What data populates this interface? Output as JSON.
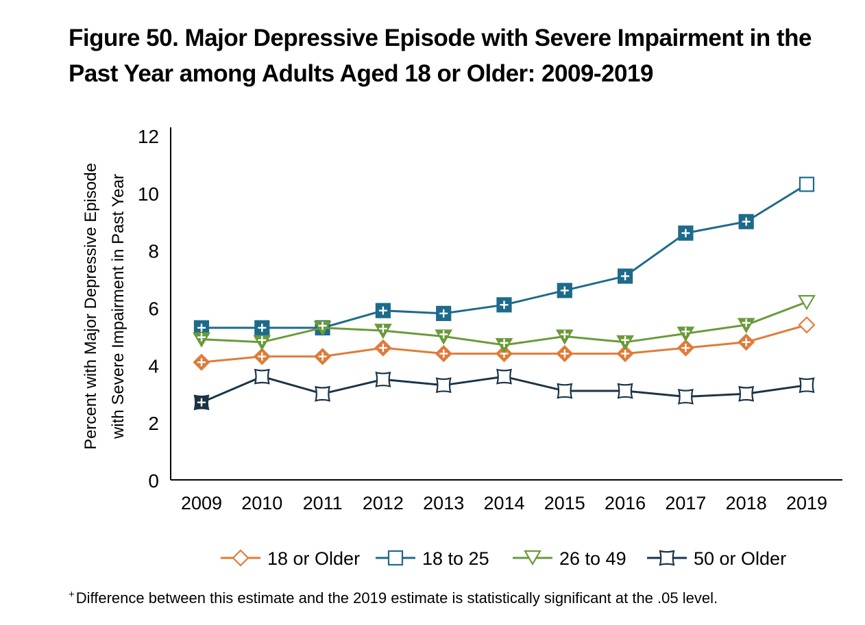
{
  "title": "Figure 50. Major Depressive Episode with Severe Impairment in the Past Year among Adults Aged 18 or Older: 2009-2019",
  "footnote": {
    "symbol": "+",
    "text": "Difference between this estimate and the 2019 estimate is statistically significant at the .05 level."
  },
  "chart_data": {
    "type": "line",
    "title": "Figure 50. Major Depressive Episode with Severe Impairment in the Past Year among Adults Aged 18 or Older: 2009-2019",
    "xlabel": "",
    "ylabel_lines": [
      "Percent with Major Depressive Episode",
      "with Severe Impairment in Past Year"
    ],
    "categories": [
      "2009",
      "2010",
      "2011",
      "2012",
      "2013",
      "2014",
      "2015",
      "2016",
      "2017",
      "2018",
      "2019"
    ],
    "ylim": [
      0,
      12
    ],
    "yticks": [
      0,
      2,
      4,
      6,
      8,
      10,
      12
    ],
    "grid": false,
    "legend_position": "bottom",
    "series": [
      {
        "name": "18 or Older",
        "marker": "diamond",
        "color": "#e07b39",
        "values": [
          4.1,
          4.3,
          4.3,
          4.6,
          4.4,
          4.4,
          4.4,
          4.4,
          4.6,
          4.8,
          5.4
        ],
        "significant": [
          true,
          true,
          true,
          true,
          true,
          true,
          true,
          true,
          true,
          true,
          false
        ]
      },
      {
        "name": "18 to 25",
        "marker": "square",
        "color": "#1e6a8a",
        "values": [
          5.3,
          5.3,
          5.3,
          5.9,
          5.8,
          6.1,
          6.6,
          7.1,
          8.6,
          9.0,
          10.3
        ],
        "significant": [
          true,
          true,
          true,
          true,
          true,
          true,
          true,
          true,
          true,
          true,
          false
        ]
      },
      {
        "name": "26 to 49",
        "marker": "triangle-down",
        "color": "#6a9a3a",
        "values": [
          4.9,
          4.8,
          5.3,
          5.2,
          5.0,
          4.7,
          5.0,
          4.8,
          5.1,
          5.4,
          6.2
        ],
        "significant": [
          true,
          true,
          true,
          true,
          true,
          true,
          true,
          true,
          true,
          true,
          false
        ]
      },
      {
        "name": "50 or Older",
        "marker": "pinched-square",
        "color": "#1a3447",
        "values": [
          2.7,
          3.6,
          3.0,
          3.5,
          3.3,
          3.6,
          3.1,
          3.1,
          2.9,
          3.0,
          3.3
        ],
        "significant": [
          true,
          false,
          false,
          false,
          false,
          false,
          false,
          false,
          false,
          false,
          false
        ]
      }
    ]
  }
}
